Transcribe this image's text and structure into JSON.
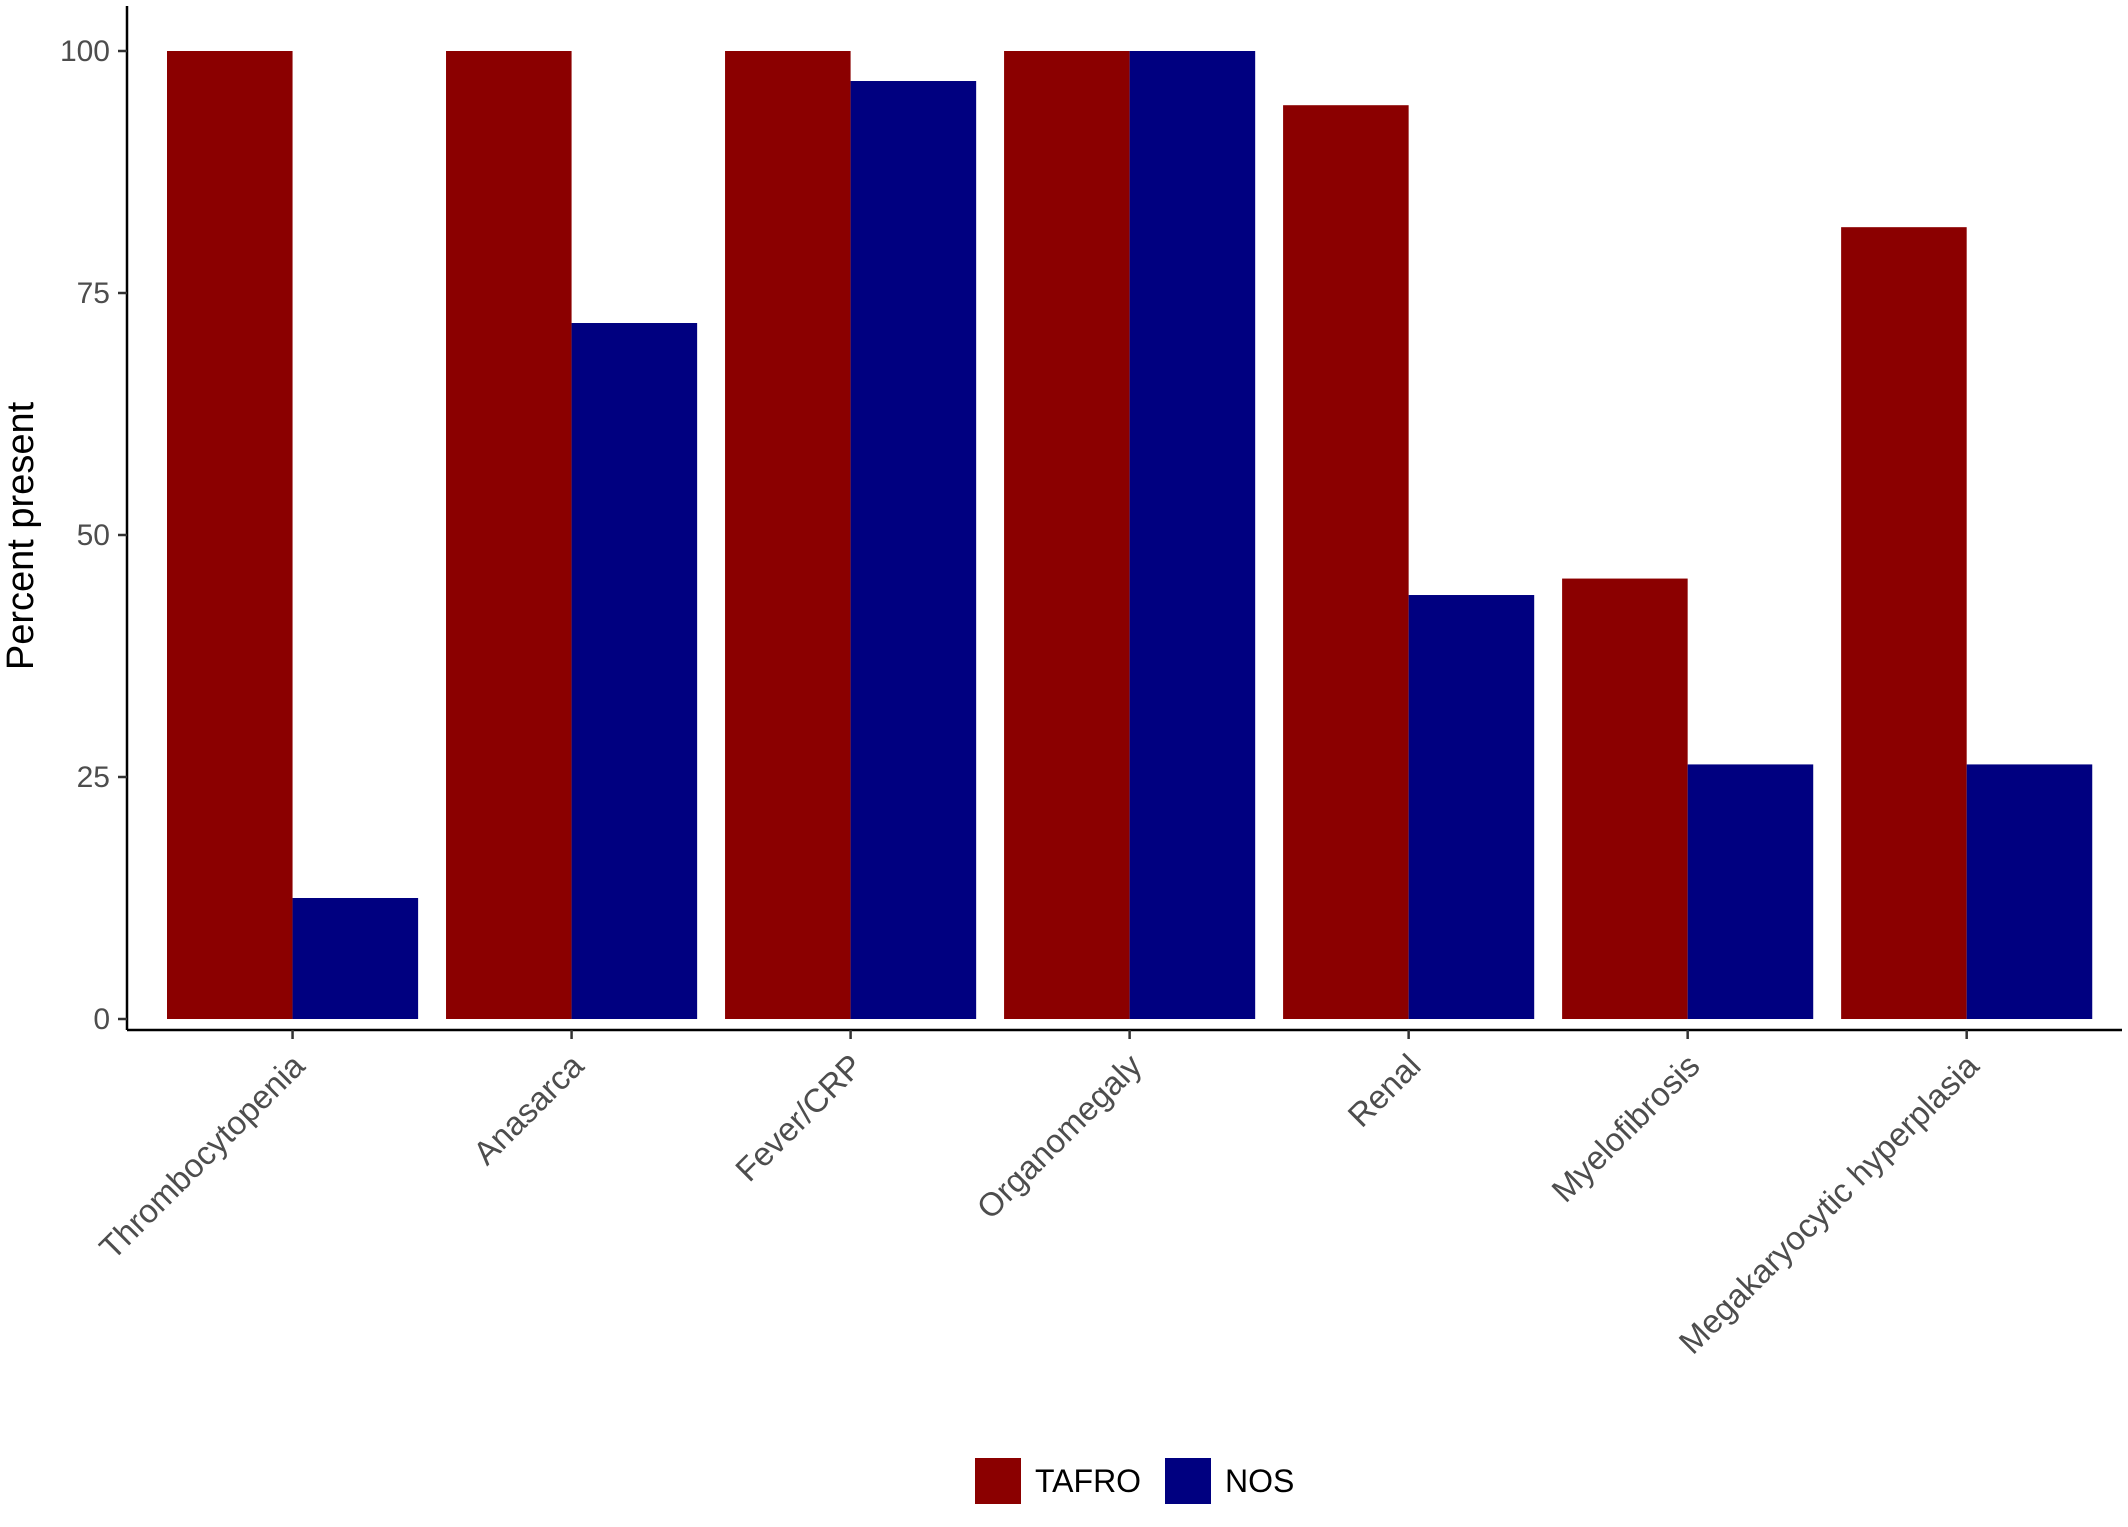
{
  "chart_data": {
    "type": "bar",
    "ylabel": "Percent present",
    "xlabel": "",
    "ylim": [
      0,
      100
    ],
    "yticks": [
      0,
      25,
      50,
      75,
      100
    ],
    "categories": [
      "Thrombocytopenia",
      "Anasarca",
      "Fever/CRP",
      "Organomegaly",
      "Renal",
      "Myelofibrosis",
      "Megakaryocytic hyperplasia"
    ],
    "series": [
      {
        "name": "TAFRO",
        "color": "#8B0000",
        "values": [
          100,
          100,
          100,
          100,
          94.4,
          45.5,
          81.8
        ]
      },
      {
        "name": "NOS",
        "color": "#000080",
        "values": [
          12.5,
          71.9,
          96.9,
          100,
          43.8,
          26.3,
          26.3
        ]
      }
    ],
    "legend_position": "bottom",
    "grid": false
  }
}
